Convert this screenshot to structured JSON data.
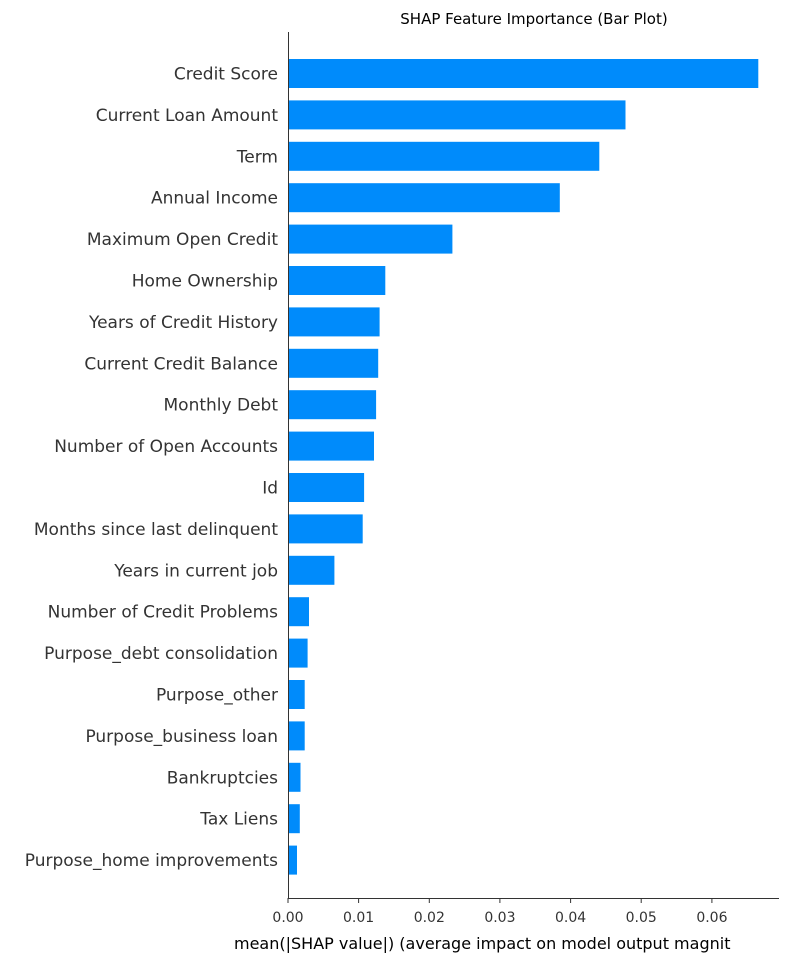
{
  "chart_data": {
    "type": "bar",
    "orientation": "horizontal",
    "title": "SHAP Feature Importance (Bar Plot)",
    "xlabel": "mean(|SHAP value|) (average impact on model output magnit",
    "ylabel": "",
    "xlim": [
      0,
      0.0695
    ],
    "xticks": [
      0.0,
      0.01,
      0.02,
      0.03,
      0.04,
      0.05,
      0.06
    ],
    "xtick_labels": [
      "0.00",
      "0.01",
      "0.02",
      "0.03",
      "0.04",
      "0.05",
      "0.06"
    ],
    "grid": false,
    "bar_color": "#008bfb",
    "categories": [
      "Credit Score",
      "Current Loan Amount",
      "Term",
      "Annual Income",
      "Maximum Open Credit",
      "Home Ownership",
      "Years of Credit History",
      "Current Credit Balance",
      "Monthly Debt",
      "Number of Open Accounts",
      "Id",
      "Months since last delinquent",
      "Years in current job",
      "Number of Credit Problems",
      "Purpose_debt consolidation",
      "Purpose_other",
      "Purpose_business loan",
      "Bankruptcies",
      "Tax Liens",
      "Purpose_home improvements"
    ],
    "values": [
      0.0665,
      0.0477,
      0.044,
      0.0384,
      0.0232,
      0.0137,
      0.0129,
      0.0127,
      0.0124,
      0.0121,
      0.0107,
      0.0105,
      0.0065,
      0.0029,
      0.0027,
      0.0023,
      0.0023,
      0.0017,
      0.0016,
      0.0012
    ]
  }
}
